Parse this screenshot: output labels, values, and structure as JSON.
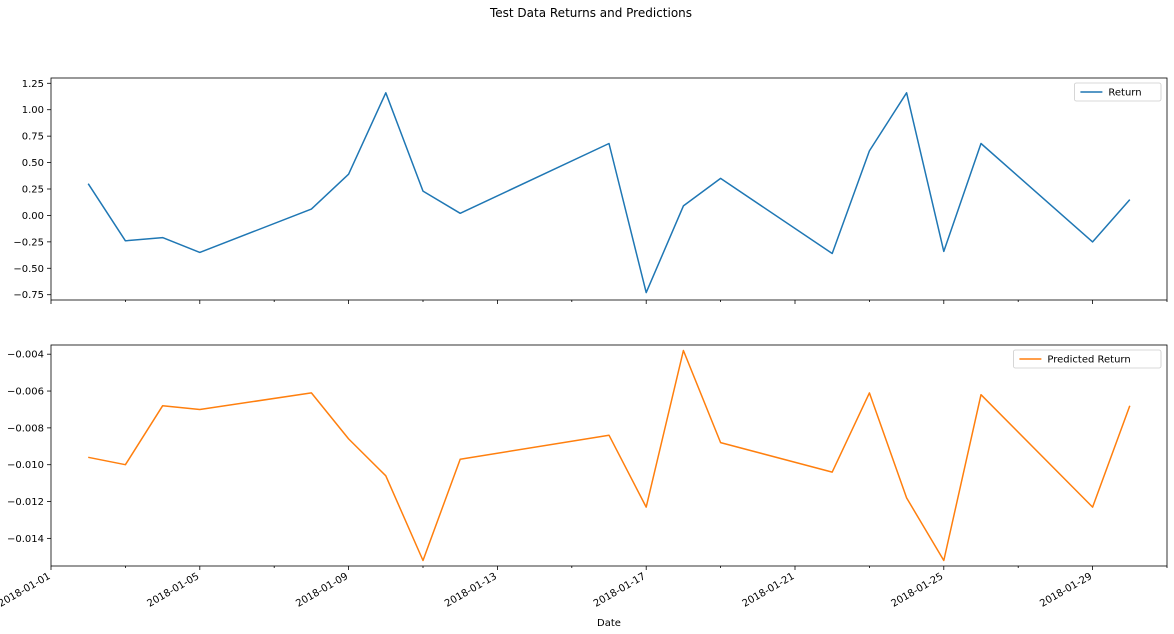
{
  "chart_data": [
    {
      "type": "line",
      "title": "Test Data Returns and Predictions",
      "xlabel": "Date",
      "x": [
        "2018-01-02",
        "2018-01-03",
        "2018-01-04",
        "2018-01-05",
        "2018-01-08",
        "2018-01-09",
        "2018-01-10",
        "2018-01-11",
        "2018-01-12",
        "2018-01-16",
        "2018-01-17",
        "2018-01-18",
        "2018-01-19",
        "2018-01-22",
        "2018-01-23",
        "2018-01-24",
        "2018-01-25",
        "2018-01-26",
        "2018-01-29",
        "2018-01-30"
      ],
      "xlim": [
        "2018-01-01",
        "2018-01-31"
      ],
      "x_tick_labels": [
        "2018-01-01",
        "2018-01-05",
        "2018-01-09",
        "2018-01-13",
        "2018-01-17",
        "2018-01-21",
        "2018-01-25",
        "2018-01-29"
      ],
      "panels": [
        {
          "series": [
            {
              "name": "Return",
              "color": "#1f77b4",
              "values": [
                0.3,
                -0.24,
                -0.21,
                -0.35,
                0.06,
                0.39,
                1.16,
                0.23,
                0.02,
                0.68,
                -0.73,
                0.09,
                0.35,
                -0.36,
                0.61,
                1.16,
                -0.34,
                0.68,
                -0.25,
                0.15
              ]
            }
          ],
          "ylim": [
            -0.8,
            1.3
          ],
          "y_ticks": [
            -0.75,
            -0.5,
            -0.25,
            0.0,
            0.25,
            0.5,
            0.75,
            1.0,
            1.25
          ],
          "y_tick_labels": [
            "−0.75",
            "−0.50",
            "−0.25",
            "0.00",
            "0.25",
            "0.50",
            "0.75",
            "1.00",
            "1.25"
          ],
          "legend": "top-right",
          "show_x_tick_labels": false
        },
        {
          "series": [
            {
              "name": "Predicted Return",
              "color": "#ff7f0e",
              "values": [
                -0.0096,
                -0.01,
                -0.0068,
                -0.007,
                -0.0061,
                -0.0086,
                -0.0106,
                -0.0152,
                -0.0097,
                -0.0084,
                -0.0123,
                -0.0038,
                -0.0088,
                -0.0104,
                -0.0061,
                -0.0118,
                -0.0152,
                -0.0062,
                -0.0123,
                -0.0068
              ]
            }
          ],
          "ylim": [
            -0.0155,
            -0.0035
          ],
          "y_ticks": [
            -0.014,
            -0.012,
            -0.01,
            -0.008,
            -0.006,
            -0.004
          ],
          "y_tick_labels": [
            "−0.014",
            "−0.012",
            "−0.010",
            "−0.008",
            "−0.006",
            "−0.004"
          ],
          "legend": "top-right",
          "show_x_tick_labels": true
        }
      ],
      "grid": false
    }
  ]
}
